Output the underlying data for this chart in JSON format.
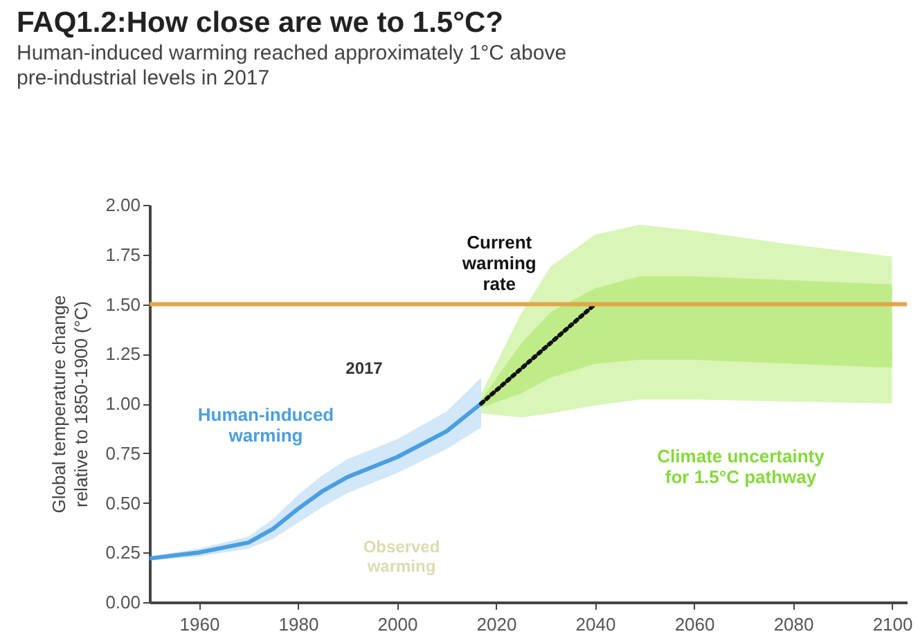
{
  "chart_data": {
    "type": "line",
    "title": "FAQ1.2:How close are we to 1.5°C?",
    "subtitle": "Human-induced warming reached approximately 1°C above pre-industrial levels in 2017",
    "ylabel": "Global temperature change relative to 1850-1900 (°C)",
    "xlim": [
      1950,
      2103
    ],
    "xticks": [
      1960,
      1980,
      2000,
      2020,
      2040,
      2060,
      2080,
      2100
    ],
    "ylim": [
      0,
      2
    ],
    "yticks": [
      {
        "value": 0,
        "label": "0.00"
      },
      {
        "value": 0.25,
        "label": "0.25"
      },
      {
        "value": 0.5,
        "label": "0.50"
      },
      {
        "value": 0.75,
        "label": "0.75"
      },
      {
        "value": 1,
        "label": "1.00"
      },
      {
        "value": 1.25,
        "label": "1.25"
      },
      {
        "value": 1.5,
        "label": "1.50"
      },
      {
        "value": 1.75,
        "label": "1.75"
      },
      {
        "value": 2,
        "label": "2.00"
      }
    ],
    "series": [
      {
        "color": "#daf5b8",
        "x": [
          2017,
          2025,
          2031,
          2040,
          2049,
          2060,
          2080,
          2100
        ],
        "values": [
          null,
          null,
          null,
          null,
          null,
          null,
          null,
          null
        ],
        "lower": [
          0.95,
          0.93,
          0.95,
          0.99,
          1.02,
          1.02,
          1.01,
          1.0
        ],
        "upper": [
          1.05,
          1.45,
          1.69,
          1.85,
          1.9,
          1.87,
          1.8,
          1.74
        ]
      },
      {
        "color": "#bfec88",
        "x": [
          2017,
          2025,
          2031,
          2040,
          2049,
          2060,
          2080,
          2100
        ],
        "values": [
          null,
          null,
          null,
          null,
          null,
          null,
          null,
          null
        ],
        "lower": [
          0.98,
          1.05,
          1.13,
          1.2,
          1.22,
          1.22,
          1.2,
          1.18
        ],
        "upper": [
          1.02,
          1.3,
          1.46,
          1.58,
          1.64,
          1.64,
          1.62,
          1.6
        ]
      },
      {
        "color": "#4a9fe0",
        "x": [
          1950,
          1960,
          1970,
          1975,
          1980,
          1985,
          1990,
          2000,
          2010,
          2017
        ],
        "values": [
          0.22,
          0.25,
          0.3,
          0.37,
          0.47,
          0.56,
          0.63,
          0.73,
          0.86,
          1.0
        ],
        "lower": [
          0.21,
          0.23,
          0.27,
          0.32,
          0.4,
          0.48,
          0.55,
          0.65,
          0.77,
          0.88
        ],
        "upper": [
          0.23,
          0.27,
          0.33,
          0.42,
          0.54,
          0.64,
          0.72,
          0.82,
          0.96,
          1.13
        ]
      },
      {
        "color": "#111111",
        "line_style": "dotted",
        "x": [
          2017,
          2040
        ],
        "values": [
          1.0,
          1.5
        ]
      }
    ],
    "ref_lines": [
      {
        "axis": "y",
        "value": 1.5,
        "color": "#e3a54a"
      }
    ],
    "annotations": [
      "2017",
      {
        "text": "Current warming rate",
        "x": 2038,
        "y": 1.46
      },
      "Human-induced warming",
      "Observed warming",
      "Climate uncertainty for 1.5°C pathway"
    ]
  }
}
